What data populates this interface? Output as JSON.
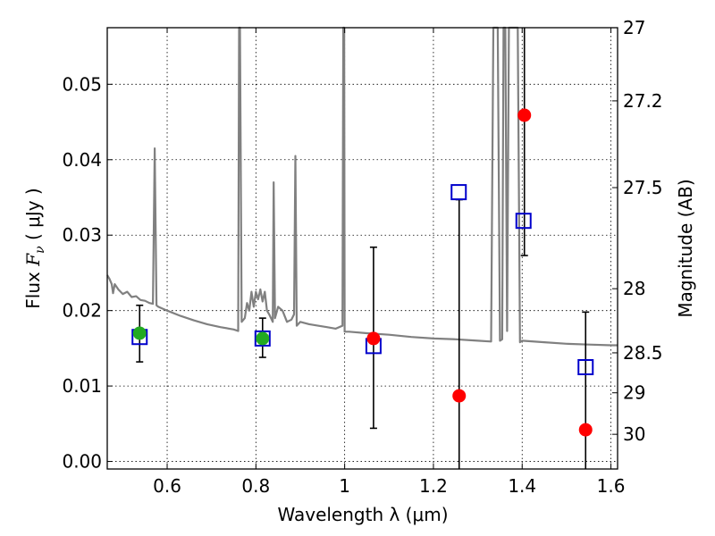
{
  "chart_data": {
    "type": "scatter",
    "xlabel": "Wavelength  λ (μm)",
    "ylabel_parts": [
      "Flux  ",
      "F",
      "ν",
      "  (  μJy  )"
    ],
    "y2label": "Magnitude (AB)",
    "xlim": [
      0.465,
      1.615
    ],
    "ylim": [
      -0.001,
      0.0575
    ],
    "grid": true,
    "x_ticks": [
      0.6,
      0.8,
      1.0,
      1.2,
      1.4,
      1.6
    ],
    "x_tick_labels": [
      "0.6",
      "0.8",
      "1",
      "1.2",
      "1.4",
      "1.6"
    ],
    "y_ticks": [
      0.0,
      0.01,
      0.02,
      0.03,
      0.04,
      0.05
    ],
    "y_tick_labels": [
      "0.00",
      "0.01",
      "0.02",
      "0.03",
      "0.04",
      "0.05"
    ],
    "right_ticks": [
      {
        "flux": 0.0575,
        "label": "27"
      },
      {
        "flux": 0.0478,
        "label": "27.2"
      },
      {
        "flux": 0.0363,
        "label": "27.5"
      },
      {
        "flux": 0.0229,
        "label": "28"
      },
      {
        "flux": 0.0144,
        "label": "28.5"
      },
      {
        "flux": 0.0091,
        "label": "29"
      },
      {
        "flux": 0.0036,
        "label": "30"
      }
    ],
    "colors": {
      "model": "#808080",
      "model_photometry": "#0000cc",
      "detections": "#22aa22",
      "upper_limits": "#ff0000",
      "errorbars": "#000000"
    },
    "series": [
      {
        "name": "model_spectrum",
        "style": "line",
        "points": [
          [
            0.465,
            0.0247
          ],
          [
            0.47,
            0.0242
          ],
          [
            0.475,
            0.0235
          ],
          [
            0.478,
            0.0223
          ],
          [
            0.482,
            0.0235
          ],
          [
            0.49,
            0.0228
          ],
          [
            0.5,
            0.0222
          ],
          [
            0.51,
            0.0225
          ],
          [
            0.52,
            0.0218
          ],
          [
            0.53,
            0.0219
          ],
          [
            0.54,
            0.0214
          ],
          [
            0.55,
            0.0213
          ],
          [
            0.56,
            0.021
          ],
          [
            0.568,
            0.0209
          ],
          [
            0.572,
            0.0415
          ],
          [
            0.576,
            0.0207
          ],
          [
            0.58,
            0.0205
          ],
          [
            0.6,
            0.02
          ],
          [
            0.63,
            0.0193
          ],
          [
            0.66,
            0.0187
          ],
          [
            0.69,
            0.0182
          ],
          [
            0.72,
            0.0178
          ],
          [
            0.75,
            0.0175
          ],
          [
            0.76,
            0.0173
          ],
          [
            0.762,
            0.0575
          ],
          [
            0.764,
            0.0575
          ],
          [
            0.768,
            0.0185
          ],
          [
            0.775,
            0.019
          ],
          [
            0.78,
            0.021
          ],
          [
            0.785,
            0.02
          ],
          [
            0.79,
            0.0225
          ],
          [
            0.795,
            0.0205
          ],
          [
            0.8,
            0.0225
          ],
          [
            0.805,
            0.0215
          ],
          [
            0.81,
            0.0228
          ],
          [
            0.815,
            0.0212
          ],
          [
            0.82,
            0.0225
          ],
          [
            0.825,
            0.02
          ],
          [
            0.83,
            0.0195
          ],
          [
            0.838,
            0.0185
          ],
          [
            0.84,
            0.037
          ],
          [
            0.843,
            0.019
          ],
          [
            0.85,
            0.0205
          ],
          [
            0.86,
            0.02
          ],
          [
            0.87,
            0.0185
          ],
          [
            0.88,
            0.0188
          ],
          [
            0.886,
            0.0195
          ],
          [
            0.889,
            0.0405
          ],
          [
            0.892,
            0.018
          ],
          [
            0.9,
            0.0185
          ],
          [
            0.92,
            0.0182
          ],
          [
            0.94,
            0.018
          ],
          [
            0.96,
            0.0178
          ],
          [
            0.98,
            0.0176
          ],
          [
            0.995,
            0.018
          ],
          [
            0.997,
            0.0575
          ],
          [
            0.999,
            0.0575
          ],
          [
            1.0,
            0.0172
          ],
          [
            1.01,
            0.0172
          ],
          [
            1.05,
            0.017
          ],
          [
            1.1,
            0.0168
          ],
          [
            1.15,
            0.0165
          ],
          [
            1.2,
            0.0163
          ],
          [
            1.25,
            0.0162
          ],
          [
            1.3,
            0.016
          ],
          [
            1.33,
            0.0159
          ],
          [
            1.335,
            0.0575
          ],
          [
            1.345,
            0.0575
          ],
          [
            1.35,
            0.016
          ],
          [
            1.355,
            0.0162
          ],
          [
            1.358,
            0.0575
          ],
          [
            1.362,
            0.0575
          ],
          [
            1.366,
            0.0173
          ],
          [
            1.37,
            0.0575
          ],
          [
            1.38,
            0.0575
          ],
          [
            1.39,
            0.0575
          ],
          [
            1.395,
            0.0158
          ],
          [
            1.4,
            0.016
          ],
          [
            1.45,
            0.0158
          ],
          [
            1.5,
            0.0156
          ],
          [
            1.55,
            0.0155
          ],
          [
            1.6,
            0.0154
          ],
          [
            1.615,
            0.0154
          ]
        ]
      },
      {
        "name": "model_photometry",
        "style": "open-square",
        "points": [
          [
            0.538,
            0.0165
          ],
          [
            0.815,
            0.0163
          ],
          [
            1.065,
            0.0153
          ],
          [
            1.257,
            0.0357
          ],
          [
            1.403,
            0.0319
          ],
          [
            1.543,
            0.0125
          ]
        ]
      },
      {
        "name": "detections",
        "style": "filled-circle",
        "points": [
          [
            0.538,
            0.017
          ],
          [
            0.815,
            0.0163
          ]
        ]
      },
      {
        "name": "upper_limits",
        "style": "filled-circle",
        "points": [
          [
            1.065,
            0.0163
          ],
          [
            1.258,
            0.0087
          ],
          [
            1.405,
            0.0459
          ],
          [
            1.543,
            0.0042
          ]
        ]
      }
    ],
    "errorbars": [
      {
        "x": 0.538,
        "low": 0.0132,
        "high": 0.0207,
        "caps": [
          true,
          true
        ]
      },
      {
        "x": 0.815,
        "low": 0.0138,
        "high": 0.019,
        "caps": [
          true,
          true
        ]
      },
      {
        "x": 1.065,
        "low": 0.0044,
        "high": 0.0284,
        "caps": [
          true,
          true
        ]
      },
      {
        "x": 1.258,
        "low": -0.001,
        "high": 0.0347,
        "caps": [
          false,
          true
        ]
      },
      {
        "x": 1.405,
        "low": 0.0273,
        "high": 0.0575,
        "caps": [
          true,
          false
        ]
      },
      {
        "x": 1.543,
        "low": -0.001,
        "high": 0.0198,
        "caps": [
          false,
          true
        ]
      }
    ]
  }
}
